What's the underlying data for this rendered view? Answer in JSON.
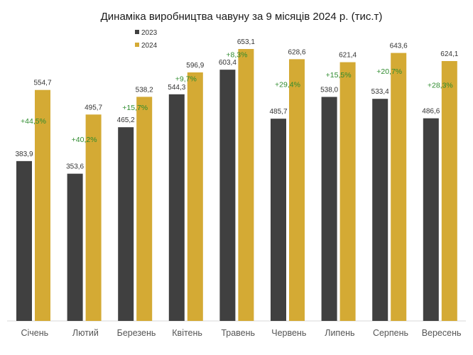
{
  "chart_data": {
    "type": "bar",
    "title": "Динаміка виробництва чавуну за 9 місяців 2024 р. (тис.т)",
    "categories": [
      "Січень",
      "Лютий",
      "Березень",
      "Квітень",
      "Травень",
      "Червень",
      "Липень",
      "Серпень",
      "Вересень"
    ],
    "series": [
      {
        "name": "2023",
        "color": "#404040",
        "values": [
          383.9,
          353.6,
          465.2,
          544.3,
          603.4,
          485.7,
          538.0,
          533.4,
          486.6
        ],
        "labels": [
          "383,9",
          "353,6",
          "465,2",
          "544,3",
          "603,4",
          "485,7",
          "538,0",
          "533,4",
          "486,6"
        ]
      },
      {
        "name": "2024",
        "color": "#d4aa34",
        "values": [
          554.7,
          495.7,
          538.2,
          596.9,
          653.1,
          628.6,
          621.4,
          643.6,
          624.1
        ],
        "labels": [
          "554,7",
          "495,7",
          "538,2",
          "596,9",
          "653,1",
          "628,6",
          "621,4",
          "643,6",
          "624,1"
        ]
      }
    ],
    "change_labels": [
      "+44,5%",
      "+40,2%",
      "+15,7%",
      "+9,7%",
      "+8,3%",
      "+29,4%",
      "+15,5%",
      "+20,7%",
      "+28,3%"
    ],
    "change_color": "#2e8b2e",
    "legend_position": "top-left",
    "grid": false,
    "xlabel": "",
    "ylabel": "",
    "ylim": [
      0,
      653.1
    ]
  }
}
